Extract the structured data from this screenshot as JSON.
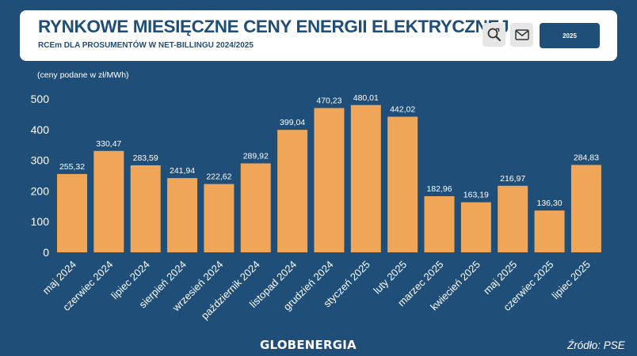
{
  "header": {
    "title": "RYNKOWE MIESIĘCZNE CENY ENERGII ELEKTRYCZNEJ",
    "subtitle": "RCEm DLA PROSUMENTÓW W NET-BILLINGU 2024/2025",
    "search_icon": "search-zoom-icon",
    "mail_icon": "mail-icon",
    "year_button_label": "2025"
  },
  "note": "(ceny podane w zł/MWh)",
  "footer": {
    "logo": "GLOBENERGIA",
    "source": "Źródło: PSE"
  },
  "colors": {
    "background": "#1f4e79",
    "bar": "#f0a659",
    "text": "#ffffff"
  },
  "chart_data": {
    "type": "bar",
    "title": "",
    "xlabel": "",
    "ylabel": "",
    "ylim": [
      0,
      500
    ],
    "yticks": [
      0,
      100,
      200,
      300,
      400,
      500
    ],
    "grid": false,
    "categories": [
      "maj 2024",
      "czerwiec 2024",
      "lipiec 2024",
      "sierpień 2024",
      "wrzesień 2024",
      "październik 2024",
      "listopad 2024",
      "grudzień 2024",
      "styczeń 2025",
      "luty 2025",
      "marzec 2025",
      "kwiecień 2025",
      "maj 2025",
      "czerwiec 2025",
      "lipiec 2025"
    ],
    "values": [
      255.32,
      330.47,
      283.59,
      241.94,
      222.62,
      289.92,
      399.04,
      470.23,
      480.01,
      442.02,
      182.96,
      163.19,
      216.97,
      136.3,
      284.83
    ],
    "value_labels": [
      "255,32",
      "330,47",
      "283,59",
      "241,94",
      "222,62",
      "289,92",
      "399,04",
      "470,23",
      "480,01",
      "442,02",
      "182,96",
      "163,19",
      "216,97",
      "136,30",
      "284,83"
    ]
  }
}
